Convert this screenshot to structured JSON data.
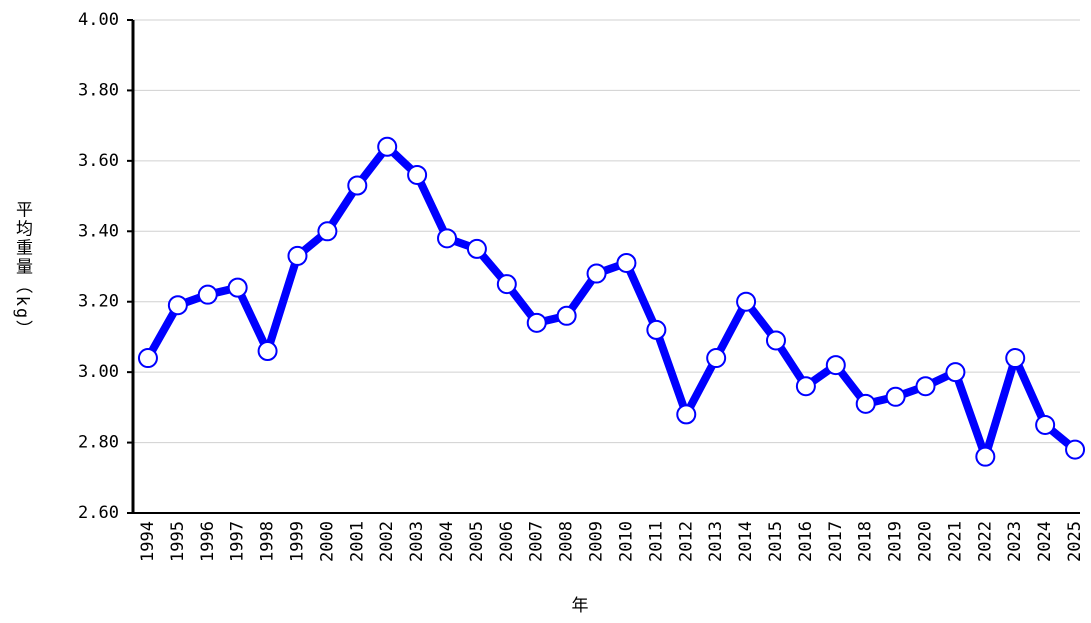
{
  "chart_data": {
    "type": "line",
    "x_label": "年",
    "y_label": "平均重量（kg）",
    "categories": [
      "1994",
      "1995",
      "1996",
      "1997",
      "1998",
      "1999",
      "2000",
      "2001",
      "2002",
      "2003",
      "2004",
      "2005",
      "2006",
      "2007",
      "2008",
      "2009",
      "2010",
      "2011",
      "2012",
      "2013",
      "2014",
      "2015",
      "2016",
      "2017",
      "2018",
      "2019",
      "2020",
      "2021",
      "2022",
      "2023",
      "2024",
      "2025"
    ],
    "values": [
      3.04,
      3.19,
      3.22,
      3.24,
      3.06,
      3.33,
      3.4,
      3.53,
      3.64,
      3.56,
      3.38,
      3.35,
      3.25,
      3.14,
      3.16,
      3.28,
      3.31,
      3.12,
      2.88,
      3.04,
      3.2,
      3.09,
      2.96,
      3.02,
      2.91,
      2.93,
      2.96,
      3.0,
      2.76,
      3.04,
      2.85,
      2.78
    ],
    "color": "#0000ff",
    "ylim": [
      2.6,
      4.0
    ],
    "yticks": [
      {
        "value": 2.6,
        "label": "2.60"
      },
      {
        "value": 2.8,
        "label": "2.80"
      },
      {
        "value": 3.0,
        "label": "3.00"
      },
      {
        "value": 3.2,
        "label": "3.20"
      },
      {
        "value": 3.4,
        "label": "3.40"
      },
      {
        "value": 3.6,
        "label": "3.60"
      },
      {
        "value": 3.8,
        "label": "3.80"
      },
      {
        "value": 4.0,
        "label": "4.00"
      }
    ],
    "grid": true
  }
}
